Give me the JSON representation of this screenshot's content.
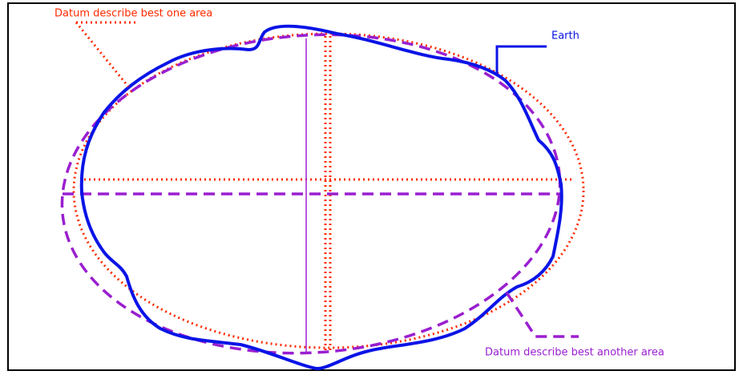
{
  "labels": {
    "datum_one": "Datum describe best one area",
    "earth": "Earth",
    "datum_another": "Datum describe best another area"
  }
}
